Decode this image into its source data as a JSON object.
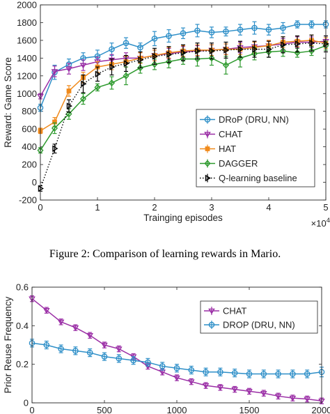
{
  "caption": "Figure 2: Comparison of learning rewards in Mario.",
  "chart_data": [
    {
      "type": "line",
      "xlabel": "Trainging episodes",
      "ylabel": "Reward: Game Score",
      "xlim": [
        0,
        50000
      ],
      "ylim": [
        -200,
        2000
      ],
      "x_multiplier": "×10",
      "x_multiplier_exp": "4",
      "xticks": [
        0,
        10000,
        20000,
        30000,
        40000,
        50000
      ],
      "xtick_labels": [
        "0",
        "1",
        "2",
        "3",
        "4",
        "5"
      ],
      "yticks": [
        -200,
        0,
        200,
        400,
        600,
        800,
        1000,
        1200,
        1400,
        1600,
        1800,
        2000
      ],
      "ytick_labels": [
        "-200",
        "0",
        "200",
        "400",
        "600",
        "800",
        "1000",
        "1200",
        "1400",
        "1600",
        "1800",
        "2000"
      ],
      "legend_position": "bottom-right",
      "series": [
        {
          "name": "DRoP (DRU, NN)",
          "color": "#2e8fc8",
          "marker": "circle",
          "dash": "solid",
          "x": [
            0,
            2500,
            5000,
            7500,
            10000,
            12500,
            15000,
            17500,
            20000,
            22500,
            25000,
            27500,
            30000,
            32500,
            35000,
            37500,
            40000,
            42500,
            45000,
            47500,
            50000
          ],
          "y": [
            840,
            1240,
            1330,
            1400,
            1420,
            1500,
            1570,
            1520,
            1620,
            1650,
            1680,
            1710,
            1690,
            1700,
            1720,
            1740,
            1720,
            1740,
            1780,
            1780,
            1780
          ],
          "err": [
            40,
            80,
            60,
            60,
            70,
            70,
            60,
            50,
            80,
            70,
            60,
            70,
            60,
            50,
            60,
            70,
            60,
            60,
            40,
            40,
            40
          ]
        },
        {
          "name": "CHAT",
          "color": "#9b2fa6",
          "marker": "triangle-down",
          "dash": "solid",
          "x": [
            0,
            2500,
            5000,
            7500,
            10000,
            12500,
            15000,
            17500,
            20000,
            22500,
            25000,
            27500,
            30000,
            32500,
            35000,
            37500,
            40000,
            42500,
            45000,
            47500,
            50000
          ],
          "y": [
            970,
            1250,
            1280,
            1320,
            1360,
            1380,
            1400,
            1400,
            1430,
            1450,
            1470,
            1480,
            1490,
            1500,
            1520,
            1530,
            1540,
            1560,
            1580,
            1580,
            1590
          ],
          "err": [
            30,
            60,
            60,
            60,
            50,
            60,
            60,
            60,
            60,
            60,
            60,
            60,
            60,
            60,
            60,
            60,
            60,
            60,
            60,
            60,
            60
          ]
        },
        {
          "name": "HAT",
          "color": "#f08a1c",
          "marker": "square",
          "dash": "solid",
          "x": [
            0,
            2500,
            5000,
            7500,
            10000,
            12500,
            15000,
            17500,
            20000,
            22500,
            25000,
            27500,
            30000,
            32500,
            35000,
            37500,
            40000,
            42500,
            45000,
            47500,
            50000
          ],
          "y": [
            580,
            680,
            1030,
            1180,
            1300,
            1330,
            1360,
            1400,
            1430,
            1460,
            1480,
            1490,
            1490,
            1500,
            1500,
            1520,
            1540,
            1580,
            1590,
            1600,
            1570
          ],
          "err": [
            30,
            50,
            60,
            60,
            60,
            60,
            60,
            60,
            60,
            60,
            60,
            60,
            60,
            60,
            60,
            60,
            60,
            60,
            60,
            60,
            60
          ]
        },
        {
          "name": "DAGGER",
          "color": "#2e9a2e",
          "marker": "diamond",
          "dash": "solid",
          "x": [
            0,
            2500,
            5000,
            7500,
            10000,
            12500,
            15000,
            17500,
            20000,
            22500,
            25000,
            27500,
            30000,
            32500,
            35000,
            37500,
            40000,
            42500,
            45000,
            47500,
            50000
          ],
          "y": [
            360,
            610,
            770,
            940,
            1070,
            1120,
            1200,
            1290,
            1330,
            1360,
            1390,
            1390,
            1400,
            1320,
            1400,
            1450,
            1470,
            1480,
            1460,
            1480,
            1540
          ],
          "err": [
            30,
            60,
            60,
            60,
            40,
            70,
            100,
            60,
            60,
            70,
            60,
            80,
            80,
            100,
            100,
            70,
            60,
            60,
            50,
            50,
            50
          ]
        },
        {
          "name": "Q-learning baseline",
          "color": "#000000",
          "marker": "triangle-right",
          "dash": "dotted",
          "x": [
            0,
            2500,
            5000,
            7500,
            10000,
            12500,
            15000,
            17500,
            20000,
            22500,
            25000,
            27500,
            30000,
            32500,
            35000,
            37500,
            40000,
            42500,
            45000,
            47500,
            50000
          ],
          "y": [
            -70,
            380,
            860,
            1110,
            1220,
            1300,
            1340,
            1380,
            1420,
            1440,
            1460,
            1480,
            1480,
            1490,
            1500,
            1500,
            1500,
            1550,
            1560,
            1570,
            1560
          ],
          "err": [
            30,
            50,
            70,
            100,
            80,
            90,
            90,
            90,
            90,
            90,
            90,
            90,
            90,
            90,
            90,
            90,
            90,
            90,
            90,
            90,
            90
          ]
        }
      ]
    },
    {
      "type": "line",
      "xlabel": "",
      "ylabel": "Prior Reuse Frequency",
      "xlim": [
        0,
        2000
      ],
      "ylim": [
        0,
        0.6
      ],
      "xticks": [
        0,
        500,
        1000,
        1500,
        2000
      ],
      "xtick_labels": [
        "0",
        "500",
        "1000",
        "1500",
        "2000"
      ],
      "yticks": [
        0,
        0.2,
        0.4,
        0.6
      ],
      "ytick_labels": [
        "0",
        "0.2",
        "0.4",
        "0.6"
      ],
      "legend_position": "top-right",
      "series": [
        {
          "name": "CHAT",
          "color": "#9b2fa6",
          "marker": "triangle-down",
          "dash": "solid",
          "x": [
            0,
            100,
            200,
            300,
            400,
            500,
            600,
            700,
            800,
            900,
            1000,
            1100,
            1200,
            1300,
            1400,
            1500,
            1600,
            1700,
            1800,
            1900,
            2000
          ],
          "y": [
            0.54,
            0.48,
            0.42,
            0.39,
            0.35,
            0.3,
            0.28,
            0.24,
            0.19,
            0.16,
            0.13,
            0.11,
            0.09,
            0.08,
            0.07,
            0.06,
            0.05,
            0.035,
            0.025,
            0.02,
            0.01
          ],
          "err": [
            0.015,
            0.015,
            0.015,
            0.015,
            0.015,
            0.015,
            0.015,
            0.015,
            0.015,
            0.015,
            0.015,
            0.015,
            0.015,
            0.015,
            0.015,
            0.015,
            0.015,
            0.015,
            0.015,
            0.015,
            0.015
          ]
        },
        {
          "name": "DROP (DRU, NN)",
          "color": "#2e8fc8",
          "marker": "circle",
          "dash": "solid",
          "x": [
            0,
            100,
            200,
            300,
            400,
            500,
            600,
            700,
            800,
            900,
            1000,
            1100,
            1200,
            1300,
            1400,
            1500,
            1600,
            1700,
            1800,
            1900,
            2000
          ],
          "y": [
            0.31,
            0.3,
            0.28,
            0.27,
            0.26,
            0.24,
            0.23,
            0.22,
            0.21,
            0.19,
            0.18,
            0.17,
            0.16,
            0.16,
            0.155,
            0.15,
            0.15,
            0.15,
            0.15,
            0.15,
            0.16
          ],
          "err": [
            0.02,
            0.02,
            0.02,
            0.02,
            0.02,
            0.02,
            0.02,
            0.02,
            0.02,
            0.02,
            0.02,
            0.02,
            0.02,
            0.02,
            0.02,
            0.02,
            0.02,
            0.02,
            0.02,
            0.02,
            0.025
          ]
        }
      ]
    }
  ]
}
